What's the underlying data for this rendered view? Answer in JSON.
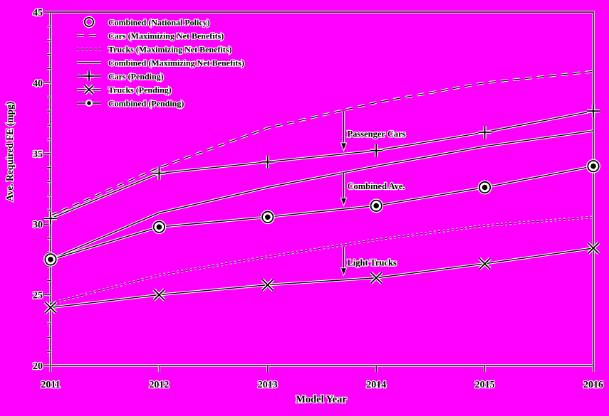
{
  "chart_data": {
    "type": "line",
    "title": "",
    "xlabel": "Model Year",
    "ylabel": "Ave. Required FE (mpg)",
    "x": [
      2011,
      2012,
      2013,
      2014,
      2015,
      2016
    ],
    "xlim": [
      2011,
      2016
    ],
    "ylim": [
      20,
      45
    ],
    "x_tick_labels": [
      "2011",
      "2012",
      "2013",
      "2014",
      "2015",
      "2016"
    ],
    "y_major_ticks": [
      20,
      25,
      30,
      35,
      40,
      45
    ],
    "y_minor_step": 1,
    "grid": false,
    "legend_position": "top-left",
    "colors": {
      "background": "#FF00FF",
      "line": "#000000",
      "halo": "#FFFFFF",
      "text": "#000000"
    },
    "series": [
      {
        "name": "Combined (National Policy)",
        "line": "none",
        "marker": "open-circle",
        "values": [
          27.5,
          29.8,
          30.5,
          31.3,
          32.6,
          34.1
        ]
      },
      {
        "name": "Cars (Maximizing Net Benefits)",
        "line": "dashed",
        "marker": "none",
        "values": [
          30.6,
          34.0,
          36.8,
          38.6,
          40.0,
          40.8
        ]
      },
      {
        "name": "Trucks (Maximizing Net Benefits)",
        "line": "dotted",
        "marker": "none",
        "values": [
          24.4,
          26.4,
          27.7,
          28.9,
          29.9,
          30.5
        ]
      },
      {
        "name": "Combined (Maximizing Net Benefits)",
        "line": "solid",
        "marker": "none",
        "values": [
          27.5,
          30.8,
          32.6,
          34.1,
          35.5,
          36.6
        ]
      },
      {
        "name": "Cars (Pending)",
        "line": "solid",
        "marker": "plus",
        "values": [
          30.4,
          33.6,
          34.4,
          35.2,
          36.5,
          38.0
        ]
      },
      {
        "name": "Trucks (Pending)",
        "line": "solid",
        "marker": "x",
        "values": [
          24.1,
          25.0,
          25.7,
          26.2,
          27.2,
          28.3
        ]
      },
      {
        "name": "Combined (Pending)",
        "line": "solid",
        "marker": "filled-circle",
        "values": [
          27.5,
          29.8,
          30.5,
          31.3,
          32.6,
          34.1
        ]
      }
    ],
    "annotations": [
      {
        "text": "Passenger Cars",
        "arrow_x_year": 2013.7,
        "arrow_from_mpg": 38.0,
        "arrow_to_mpg": 35.2,
        "label_mpg": 36.4
      },
      {
        "text": "Combined Ave.",
        "arrow_x_year": 2013.7,
        "arrow_from_mpg": 33.65,
        "arrow_to_mpg": 31.3,
        "label_mpg": 32.7
      },
      {
        "text": "Light Trucks",
        "arrow_x_year": 2013.7,
        "arrow_from_mpg": 28.4,
        "arrow_to_mpg": 26.35,
        "label_mpg": 27.3
      }
    ]
  }
}
